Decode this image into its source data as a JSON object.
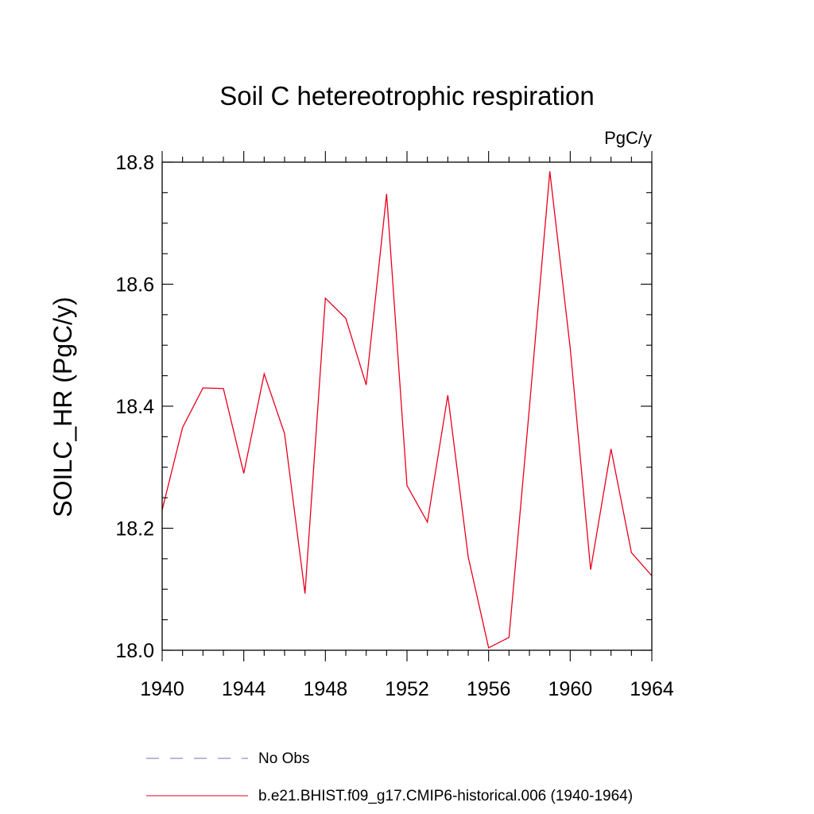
{
  "chart_data": {
    "type": "line",
    "title": "Soil C hetereotrophic respiration",
    "units": "PgC/y",
    "ylabel": "SOILC_HR  (PgC/y)",
    "xlabel": "",
    "xlim": [
      1940,
      1964
    ],
    "ylim": [
      18.0,
      18.8
    ],
    "x_major_ticks": [
      1940,
      1944,
      1948,
      1952,
      1956,
      1960,
      1964
    ],
    "x_tick_labels": [
      "1940",
      "1944",
      "1948",
      "1952",
      "1956",
      "1960",
      "1964"
    ],
    "x_minor_step": 1,
    "y_major_ticks": [
      18.0,
      18.2,
      18.4,
      18.6,
      18.8
    ],
    "y_tick_labels": [
      "18.0",
      "18.2",
      "18.4",
      "18.6",
      "18.8"
    ],
    "y_minor_step": 0.05,
    "grid": false,
    "legend_position": "bottom",
    "series": [
      {
        "name": "b.e21.BHIST.f09_g17.CMIP6-historical.006 (1940-1964)",
        "color": "#e8001c",
        "style": "solid",
        "x": [
          1940,
          1941,
          1942,
          1943,
          1944,
          1945,
          1946,
          1947,
          1948,
          1949,
          1950,
          1951,
          1952,
          1953,
          1954,
          1955,
          1956,
          1957,
          1958,
          1959,
          1960,
          1961,
          1962,
          1963,
          1964
        ],
        "y": [
          18.23,
          18.365,
          18.43,
          18.429,
          18.29,
          18.453,
          18.355,
          18.093,
          18.577,
          18.544,
          18.435,
          18.748,
          18.27,
          18.21,
          18.418,
          18.153,
          18.004,
          18.021,
          18.398,
          18.785,
          18.495,
          18.132,
          18.33,
          18.16,
          18.122
        ]
      }
    ],
    "legend": [
      {
        "label": "No Obs",
        "color": "#7070b8",
        "style": "dashed"
      },
      {
        "label": "b.e21.BHIST.f09_g17.CMIP6-historical.006 (1940-1964)",
        "color": "#e8001c",
        "style": "solid"
      }
    ]
  }
}
